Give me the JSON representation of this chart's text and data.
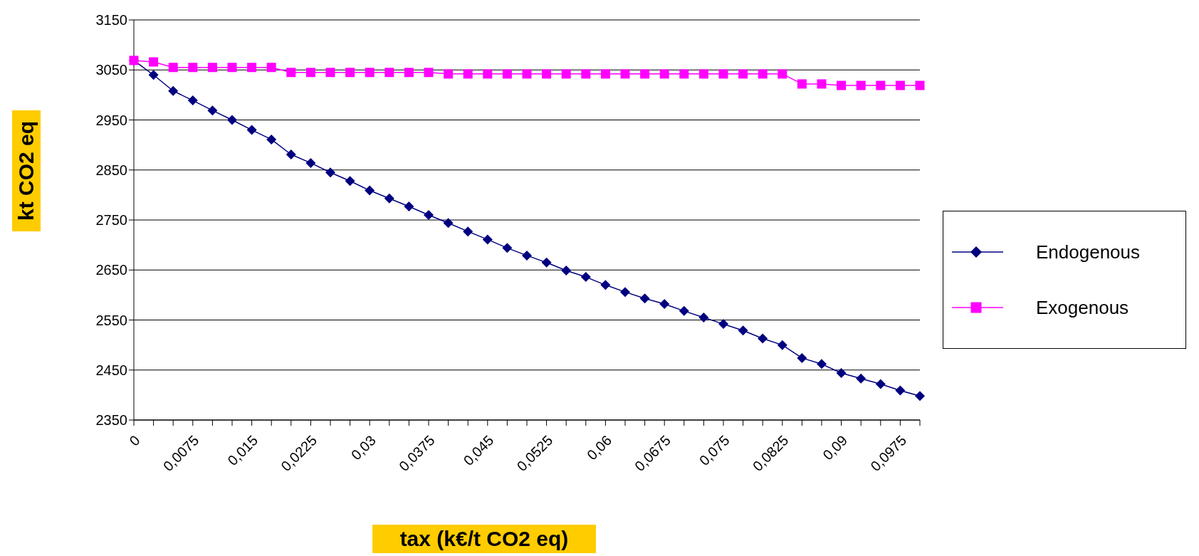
{
  "chart_data": {
    "type": "line",
    "xlabel": "tax (k€/t CO2 eq)",
    "ylabel": "kt CO2 eq",
    "categories": [
      "0",
      null,
      null,
      "0,0075",
      null,
      null,
      "0,015",
      null,
      null,
      "0,0225",
      null,
      null,
      "0,03",
      null,
      null,
      "0,0375",
      null,
      null,
      "0,045",
      null,
      null,
      "0,0525",
      null,
      null,
      "0,06",
      null,
      null,
      "0,0675",
      null,
      null,
      "0,075",
      null,
      null,
      "0,0825",
      null,
      null,
      "0,09",
      null,
      null,
      "0,0975",
      null
    ],
    "series": [
      {
        "name": "Endogenous",
        "color": "#000080",
        "marker": "diamond",
        "values": [
          3069,
          3040,
          3008,
          2989,
          2969,
          2950,
          2930,
          2911,
          2881,
          2864,
          2845,
          2828,
          2809,
          2793,
          2777,
          2760,
          2744,
          2727,
          2711,
          2694,
          2679,
          2665,
          2649,
          2636,
          2620,
          2606,
          2593,
          2582,
          2568,
          2555,
          2542,
          2529,
          2513,
          2500,
          2474,
          2462,
          2444,
          2433,
          2422,
          2409,
          2398
        ]
      },
      {
        "name": "Exogenous",
        "color": "#ff00ff",
        "marker": "square",
        "values": [
          3069,
          3066,
          3055,
          3055,
          3055,
          3055,
          3055,
          3055,
          3045,
          3045,
          3045,
          3045,
          3045,
          3045,
          3045,
          3045,
          3042,
          3042,
          3042,
          3042,
          3042,
          3042,
          3042,
          3042,
          3042,
          3042,
          3042,
          3042,
          3042,
          3042,
          3042,
          3042,
          3042,
          3042,
          3022,
          3022,
          3019,
          3019,
          3019,
          3019,
          3019
        ]
      }
    ],
    "ylim": [
      2350,
      3150
    ],
    "yticks": [
      2350,
      2450,
      2550,
      2650,
      2750,
      2850,
      2950,
      3050,
      3150
    ],
    "grid": "y",
    "legend": "right"
  }
}
